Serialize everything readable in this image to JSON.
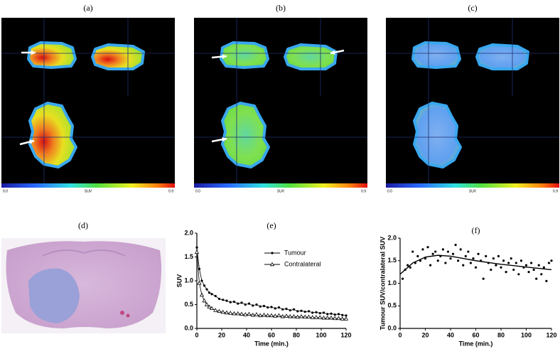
{
  "panels": [
    {
      "label": "(a)",
      "scale_min": "0.0",
      "scale_label": "SUV",
      "scale_max": "0.9"
    },
    {
      "label": "(b)",
      "scale_min": "0.0",
      "scale_label": "SUV",
      "scale_max": "0.9"
    },
    {
      "label": "(c)",
      "scale_min": "0.0",
      "scale_label": "SUV",
      "scale_max": "0.9"
    }
  ],
  "histology": {
    "label": "(d)"
  },
  "chart_data": [
    {
      "type": "line",
      "title": "(e)",
      "xlabel": "Time (min.)",
      "ylabel": "SUV",
      "xlim": [
        0,
        120
      ],
      "xticks": [
        0,
        20,
        40,
        60,
        80,
        100,
        120
      ],
      "ylim": [
        0,
        2
      ],
      "yticks": [
        {
          "value": 0,
          "label": "0.0"
        },
        0.5,
        {
          "value": 1,
          "label": "1.0"
        },
        1.5,
        {
          "value": 2,
          "label": "2.0"
        }
      ],
      "legend": "right",
      "x": [
        0,
        2,
        4,
        6,
        8,
        10,
        12,
        15,
        18,
        21,
        24,
        27,
        30,
        33,
        36,
        39,
        42,
        45,
        48,
        51,
        54,
        57,
        60,
        63,
        66,
        69,
        72,
        75,
        78,
        81,
        84,
        87,
        90,
        93,
        96,
        99,
        102,
        105,
        108,
        111,
        114,
        117,
        120
      ],
      "series": [
        {
          "name": "Tumour",
          "color": "#000000",
          "marker": "circle",
          "values": [
            1.7,
            1.25,
            1.0,
            0.9,
            0.82,
            0.75,
            0.72,
            0.68,
            0.62,
            0.6,
            0.58,
            0.55,
            0.56,
            0.52,
            0.54,
            0.5,
            0.52,
            0.48,
            0.5,
            0.46,
            0.47,
            0.44,
            0.45,
            0.42,
            0.44,
            0.4,
            0.41,
            0.38,
            0.4,
            0.36,
            0.37,
            0.35,
            0.36,
            0.33,
            0.34,
            0.32,
            0.33,
            0.3,
            0.31,
            0.29,
            0.3,
            0.28,
            0.27
          ]
        },
        {
          "name": "Contralateral",
          "color": "#000000",
          "marker": "triangle",
          "values": [
            1.6,
            0.95,
            0.7,
            0.58,
            0.5,
            0.45,
            0.42,
            0.38,
            0.36,
            0.34,
            0.33,
            0.32,
            0.31,
            0.31,
            0.3,
            0.29,
            0.3,
            0.28,
            0.29,
            0.27,
            0.28,
            0.27,
            0.27,
            0.26,
            0.27,
            0.25,
            0.26,
            0.25,
            0.25,
            0.24,
            0.25,
            0.24,
            0.24,
            0.23,
            0.23,
            0.23,
            0.22,
            0.22,
            0.22,
            0.21,
            0.21,
            0.2,
            0.2
          ]
        }
      ]
    },
    {
      "type": "scatter",
      "title": "(f)",
      "xlabel": "Time (min.)",
      "ylabel": "Tumour SUV/contralateral SUV",
      "xlim": [
        0,
        120
      ],
      "xticks": [
        0,
        20,
        40,
        60,
        80,
        100,
        120
      ],
      "ylim": [
        0,
        2
      ],
      "yticks": [
        {
          "value": 0,
          "label": "0.0"
        },
        0.5,
        {
          "value": 1,
          "label": "1.0"
        },
        1.5,
        {
          "value": 2,
          "label": "2.0"
        }
      ],
      "series": [
        {
          "color": "#000000",
          "marker": "circle",
          "x": [
            2,
            4,
            6,
            8,
            10,
            12,
            14,
            16,
            18,
            20,
            22,
            24,
            26,
            28,
            30,
            32,
            34,
            36,
            38,
            40,
            42,
            44,
            46,
            48,
            50,
            52,
            54,
            56,
            58,
            60,
            62,
            64,
            66,
            68,
            70,
            72,
            74,
            76,
            78,
            80,
            82,
            84,
            86,
            88,
            90,
            92,
            94,
            96,
            98,
            100,
            102,
            104,
            106,
            108,
            110,
            112,
            114,
            116,
            118,
            120
          ],
          "values": [
            1.1,
            1.3,
            1.4,
            1.35,
            1.7,
            1.45,
            1.6,
            1.5,
            1.75,
            1.55,
            1.8,
            1.4,
            1.65,
            1.7,
            1.5,
            1.6,
            1.75,
            1.45,
            1.7,
            1.55,
            1.65,
            1.85,
            1.5,
            1.75,
            1.4,
            1.6,
            1.7,
            1.45,
            1.55,
            1.35,
            1.65,
            1.5,
            1.1,
            1.6,
            1.45,
            1.3,
            1.55,
            1.4,
            1.6,
            1.35,
            1.5,
            1.25,
            1.45,
            1.55,
            1.3,
            1.45,
            1.2,
            1.5,
            1.35,
            1.4,
            1.25,
            1.45,
            1.3,
            1.1,
            1.4,
            1.2,
            1.35,
            1.05,
            1.45,
            1.5
          ]
        },
        {
          "color": "#000000",
          "style": "line",
          "x": [
            0,
            10,
            20,
            30,
            40,
            50,
            60,
            70,
            80,
            90,
            100,
            110,
            120
          ],
          "values": [
            1.2,
            1.45,
            1.58,
            1.62,
            1.6,
            1.55,
            1.5,
            1.46,
            1.42,
            1.39,
            1.36,
            1.33,
            1.3
          ]
        }
      ]
    }
  ]
}
